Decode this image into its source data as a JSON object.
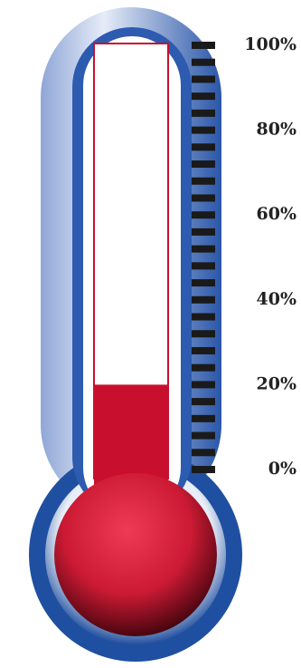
{
  "chart_data": {
    "type": "thermometer",
    "value": 20,
    "color": "#c8102e",
    "ylim": [
      0,
      100
    ],
    "yticks": [
      {
        "value": 0,
        "label": "0%"
      },
      {
        "value": 20,
        "label": "20%"
      },
      {
        "value": 40,
        "label": "40%"
      },
      {
        "value": 60,
        "label": "60%"
      },
      {
        "value": 80,
        "label": "80%"
      },
      {
        "value": 100,
        "label": "100%"
      }
    ],
    "minor_yticks": [
      0,
      4,
      8,
      12,
      16,
      20,
      24,
      28,
      32,
      36,
      40,
      44,
      48,
      52,
      56,
      60,
      64,
      68,
      72,
      76,
      80,
      84,
      88,
      92,
      96,
      100
    ]
  }
}
